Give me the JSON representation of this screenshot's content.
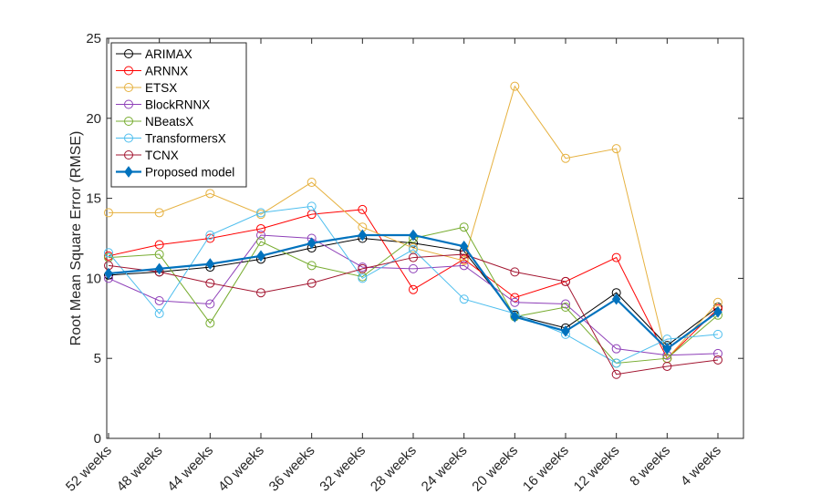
{
  "chart_data": {
    "type": "line",
    "title": "",
    "xlabel": "",
    "ylabel": "Root Mean Square Error (RMSE)",
    "ylim": [
      0,
      25
    ],
    "yticks": [
      0,
      5,
      10,
      15,
      20,
      25
    ],
    "grid": false,
    "legend_position": "top-left",
    "categories": [
      "52 weeks",
      "48 weeks",
      "44 weeks",
      "40 weeks",
      "36 weeks",
      "32 weeks",
      "28 weeks",
      "24 weeks",
      "20 weeks",
      "16 weeks",
      "12 weeks",
      "8 weeks",
      "4 weeks"
    ],
    "series": [
      {
        "name": "ARIMAX",
        "color": "#000000",
        "marker": "circle",
        "values": [
          10.2,
          10.4,
          10.7,
          11.2,
          11.9,
          12.5,
          12.2,
          11.7,
          7.7,
          6.9,
          9.1,
          5.8,
          8.2
        ]
      },
      {
        "name": "ARNNX",
        "color": "#ff0000",
        "marker": "circle",
        "values": [
          11.4,
          12.1,
          12.5,
          13.1,
          14.0,
          14.3,
          9.3,
          11.2,
          8.8,
          9.8,
          11.3,
          5.0,
          8.1
        ]
      },
      {
        "name": "ETSX",
        "color": "#e6b13f",
        "marker": "circle",
        "values": [
          14.1,
          14.1,
          15.3,
          14.0,
          16.0,
          13.2,
          11.9,
          11.1,
          22.0,
          17.5,
          18.1,
          5.0,
          8.5
        ]
      },
      {
        "name": "BlockRNNX",
        "color": "#8e3fb8",
        "marker": "circle",
        "values": [
          10.0,
          8.6,
          8.4,
          12.7,
          12.5,
          10.7,
          10.6,
          10.8,
          8.5,
          8.4,
          5.6,
          5.2,
          5.3
        ]
      },
      {
        "name": "NBeatsX",
        "color": "#77ac30",
        "marker": "circle",
        "values": [
          11.3,
          11.5,
          7.2,
          12.3,
          10.8,
          10.1,
          12.5,
          13.2,
          7.6,
          8.2,
          4.7,
          5.0,
          7.7
        ]
      },
      {
        "name": "TransformersX",
        "color": "#4dbeee",
        "marker": "circle",
        "values": [
          11.6,
          7.8,
          12.7,
          14.1,
          14.5,
          10.0,
          11.8,
          8.7,
          7.8,
          6.5,
          4.7,
          6.2,
          6.5
        ]
      },
      {
        "name": "TCNX",
        "color": "#a2142f",
        "marker": "circle",
        "values": [
          10.8,
          10.4,
          9.7,
          9.1,
          9.7,
          10.6,
          11.3,
          11.5,
          10.4,
          9.8,
          4.0,
          4.5,
          4.9
        ]
      },
      {
        "name": "Proposed model",
        "color": "#0072bd",
        "marker": "diamond",
        "bold": true,
        "values": [
          10.3,
          10.6,
          10.9,
          11.4,
          12.2,
          12.7,
          12.7,
          12.0,
          7.6,
          6.7,
          8.7,
          5.6,
          7.9
        ]
      }
    ]
  }
}
